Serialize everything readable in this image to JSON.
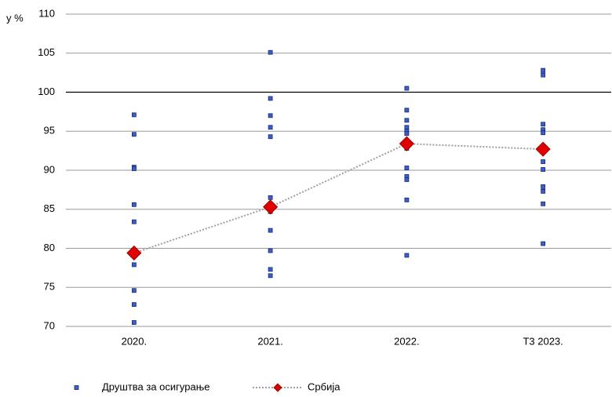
{
  "chart_data": {
    "type": "scatter-line",
    "y_label": "у %",
    "categories": [
      "2020.",
      "2021.",
      "2022.",
      "Т3 2023."
    ],
    "ylim": [
      70,
      110
    ],
    "yticks": [
      70,
      75,
      80,
      85,
      90,
      95,
      100,
      105,
      110
    ],
    "grid": true,
    "reference_line": 100,
    "series": [
      {
        "name": "Друштва за осигурање",
        "color": "#3a5fcd",
        "type": "scatter",
        "values": [
          [
            97.1,
            94.6,
            90.4,
            90.2,
            85.6,
            83.4,
            79.7,
            79.2,
            77.9,
            74.6,
            72.8,
            70.5
          ],
          [
            105.1,
            99.2,
            97.0,
            95.5,
            94.3,
            86.5,
            84.7,
            82.3,
            79.7,
            77.3,
            76.5
          ],
          [
            100.5,
            97.7,
            96.4,
            95.5,
            95.0,
            94.7,
            93.4,
            92.8,
            90.3,
            89.2,
            88.8,
            86.2,
            79.1
          ],
          [
            102.8,
            102.2,
            95.9,
            95.2,
            94.8,
            93.0,
            92.6,
            91.1,
            90.1,
            87.9,
            87.3,
            85.7,
            80.6
          ]
        ]
      },
      {
        "name": "Србија",
        "color": "#e00000",
        "type": "line",
        "values": [
          79.4,
          85.3,
          93.4,
          92.7
        ]
      }
    ],
    "legend": "bottom"
  }
}
